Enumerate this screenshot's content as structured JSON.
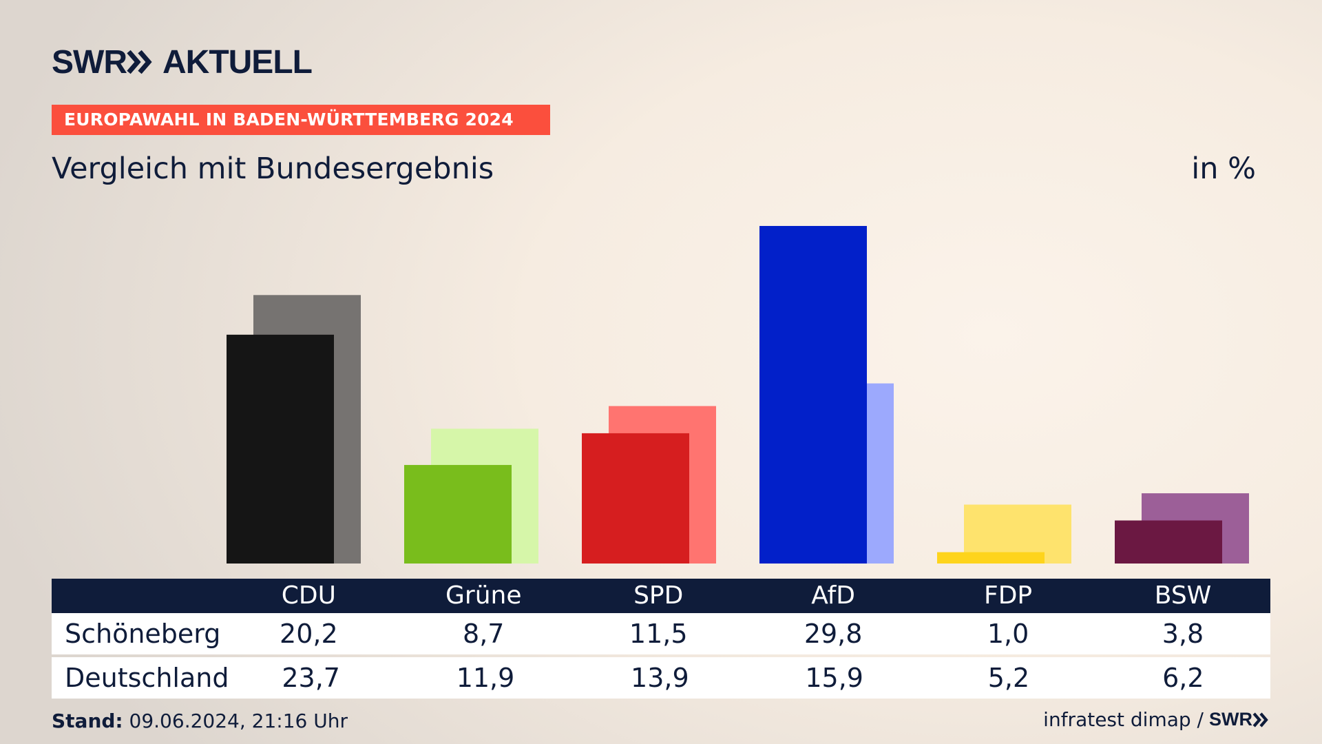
{
  "brand": {
    "logo_left": "SWR",
    "logo_right": "AKTUELL",
    "footer_logo": "SWR"
  },
  "banner": "EUROPAWAHL IN BADEN-WÜRTTEMBERG 2024",
  "title": "Vergleich mit Bundesergebnis",
  "unit": "in %",
  "colors": {
    "navy": "#0f1c3a",
    "banner": "#fb4f3d"
  },
  "chart_data": {
    "type": "bar",
    "title": "Vergleich mit Bundesergebnis",
    "unit": "in %",
    "categories": [
      "CDU",
      "Grüne",
      "SPD",
      "AfD",
      "FDP",
      "BSW"
    ],
    "series": [
      {
        "name": "Schöneberg",
        "values": [
          20.2,
          8.7,
          11.5,
          29.8,
          1.0,
          3.8
        ],
        "colors": [
          "#151515",
          "#79bd1c",
          "#d61e1f",
          "#0220c9",
          "#fed41c",
          "#6b1842"
        ]
      },
      {
        "name": "Deutschland",
        "values": [
          23.7,
          11.9,
          13.9,
          15.9,
          5.2,
          6.2
        ],
        "colors": [
          "#767371",
          "#d6f6a9",
          "#ff7470",
          "#9ca9fd",
          "#fee36d",
          "#9c5f98"
        ]
      }
    ],
    "table_values": [
      [
        "20,2",
        "8,7",
        "11,5",
        "29,8",
        "1,0",
        "3,8"
      ],
      [
        "23,7",
        "11,9",
        "13,9",
        "15,9",
        "5,2",
        "6,2"
      ]
    ],
    "ylim": [
      0,
      29.8
    ],
    "grid": false,
    "legend": "none"
  },
  "footer": {
    "stand_label": "Stand:",
    "stand_value": "09.06.2024, 21:16 Uhr",
    "source": "infratest dimap /"
  }
}
